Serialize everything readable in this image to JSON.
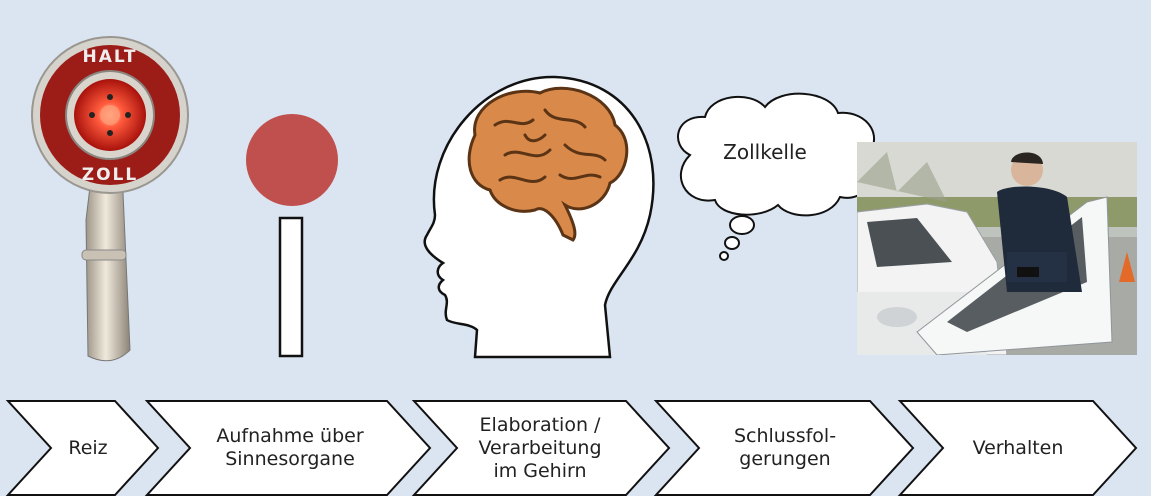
{
  "stop_paddle": {
    "top_text": "HALT",
    "bottom_text": "ZOLL"
  },
  "thought_bubble": {
    "text": "Zollkelle"
  },
  "process_steps": [
    {
      "label": "Reiz"
    },
    {
      "label": "Aufnahme über\nSinnesorgane"
    },
    {
      "label": "Elaboration /\nVerarbeitung\nim Gehirn"
    },
    {
      "label": "Schlussfol-\ngerungen"
    },
    {
      "label": "Verhalten"
    }
  ],
  "colors": {
    "background": "#dbe5f1",
    "info_dot": "#c0504d",
    "brain": "#d9894a",
    "chevron_fill": "#ffffff",
    "chevron_stroke": "#111111"
  }
}
